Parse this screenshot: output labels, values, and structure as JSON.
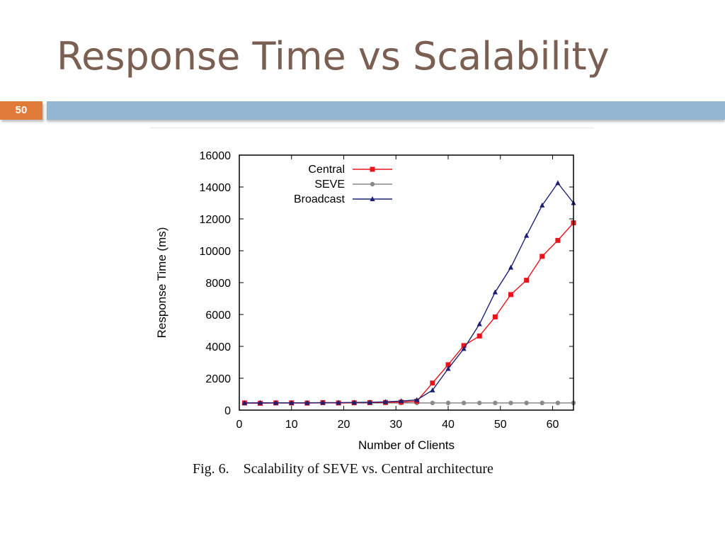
{
  "slide": {
    "title": "Response Time vs Scalability",
    "number": "50",
    "caption": "Fig. 6.    Scalability of SEVE vs. Central architecture"
  },
  "chart_data": {
    "type": "line",
    "xlabel": "Number of Clients",
    "ylabel": "Response Time (ms)",
    "xlim": [
      0,
      64
    ],
    "ylim": [
      0,
      16000
    ],
    "xticks": [
      0,
      10,
      20,
      30,
      40,
      50,
      60
    ],
    "yticks": [
      0,
      2000,
      4000,
      6000,
      8000,
      10000,
      12000,
      14000,
      16000
    ],
    "grid": false,
    "legend_position": "top-left",
    "series": [
      {
        "name": "Central",
        "color": "#e8141c",
        "marker": "square",
        "x": [
          1,
          4,
          7,
          10,
          13,
          16,
          19,
          22,
          25,
          28,
          31,
          34,
          37,
          40,
          43,
          46,
          49,
          52,
          55,
          58,
          61,
          64
        ],
        "y": [
          450,
          430,
          450,
          450,
          440,
          470,
          450,
          460,
          470,
          480,
          500,
          560,
          1700,
          2850,
          4050,
          4650,
          5850,
          7250,
          8150,
          9650,
          10650,
          11750
        ]
      },
      {
        "name": "SEVE",
        "color": "#8a8a8a",
        "marker": "circle",
        "x": [
          1,
          4,
          7,
          10,
          13,
          16,
          19,
          22,
          25,
          28,
          31,
          34,
          37,
          40,
          43,
          46,
          49,
          52,
          55,
          58,
          61,
          64
        ],
        "y": [
          450,
          450,
          450,
          450,
          450,
          450,
          450,
          450,
          450,
          450,
          450,
          450,
          450,
          450,
          450,
          450,
          450,
          450,
          450,
          450,
          450,
          450
        ]
      },
      {
        "name": "Broadcast",
        "color": "#1c2075",
        "marker": "triangle",
        "x": [
          1,
          4,
          7,
          10,
          13,
          16,
          19,
          22,
          25,
          28,
          31,
          34,
          37,
          40,
          43,
          46,
          49,
          52,
          55,
          58,
          61,
          64
        ],
        "y": [
          450,
          460,
          460,
          460,
          460,
          470,
          470,
          480,
          490,
          520,
          570,
          640,
          1250,
          2600,
          3850,
          5400,
          7400,
          8950,
          10950,
          12850,
          14250,
          13000
        ]
      }
    ]
  }
}
